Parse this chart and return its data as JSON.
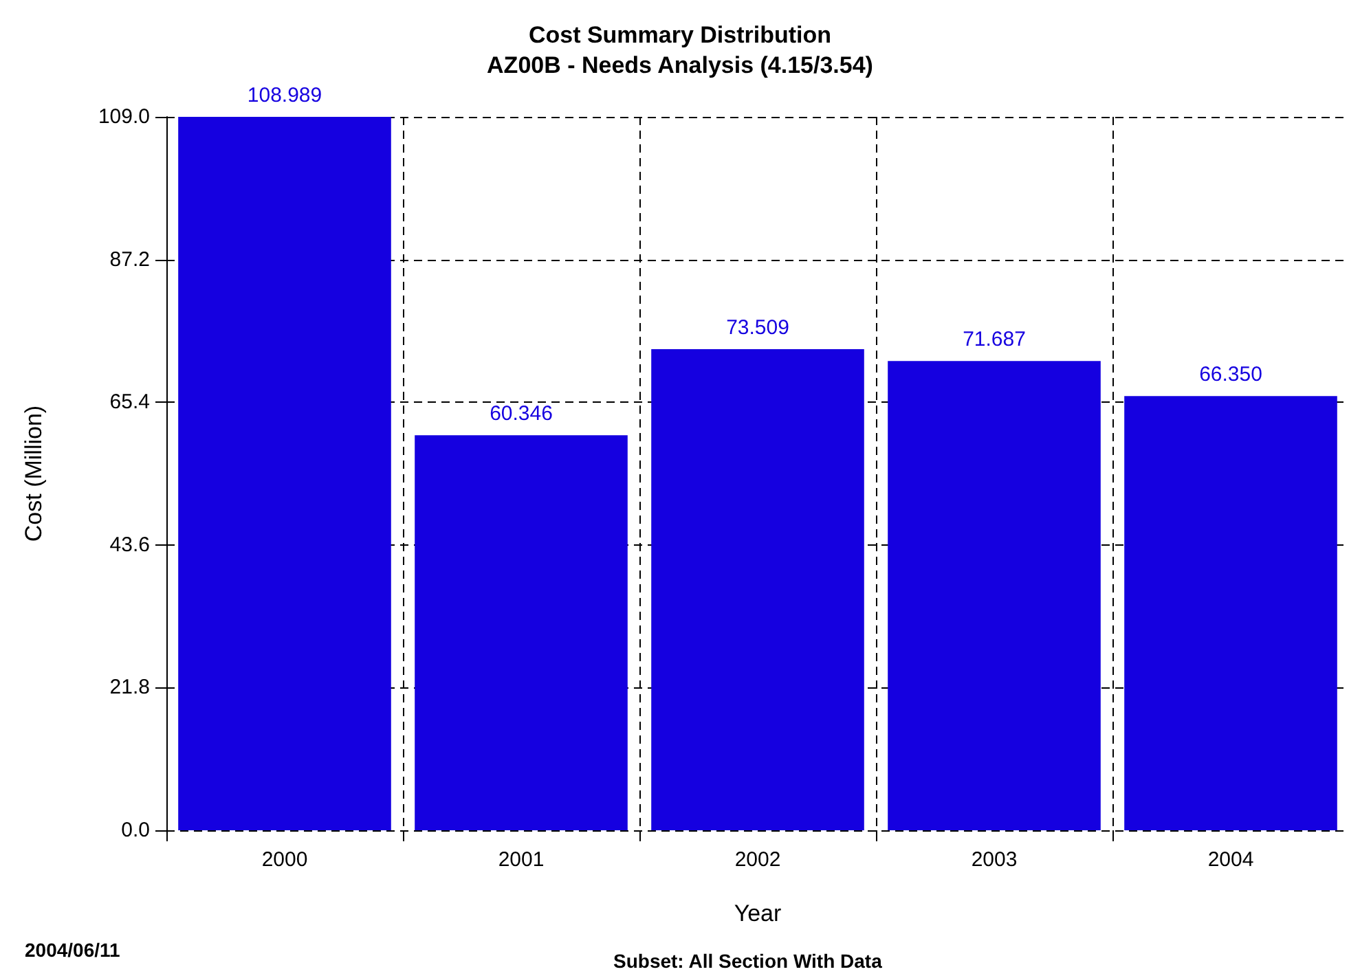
{
  "chart_data": {
    "type": "bar",
    "title": "Cost Summary Distribution",
    "subtitle": "AZ00B - Needs Analysis (4.15/3.54)",
    "xlabel": "Year",
    "ylabel": "Cost (Million)",
    "categories": [
      "2000",
      "2001",
      "2002",
      "2003",
      "2004"
    ],
    "values": [
      108.989,
      60.346,
      73.509,
      71.687,
      66.35
    ],
    "value_labels": [
      "108.989",
      "60.346",
      "73.509",
      "71.687",
      "66.350"
    ],
    "color": "#1500e0",
    "ylim": [
      0,
      109
    ],
    "yticks": [
      {
        "value": 0,
        "label": "0.0"
      },
      21.8,
      43.6,
      65.4,
      87.2,
      {
        "value": 109,
        "label": "109.0"
      }
    ],
    "grid": true,
    "annotations": [
      "2004/06/11",
      "Subset: All Section With Data"
    ]
  }
}
